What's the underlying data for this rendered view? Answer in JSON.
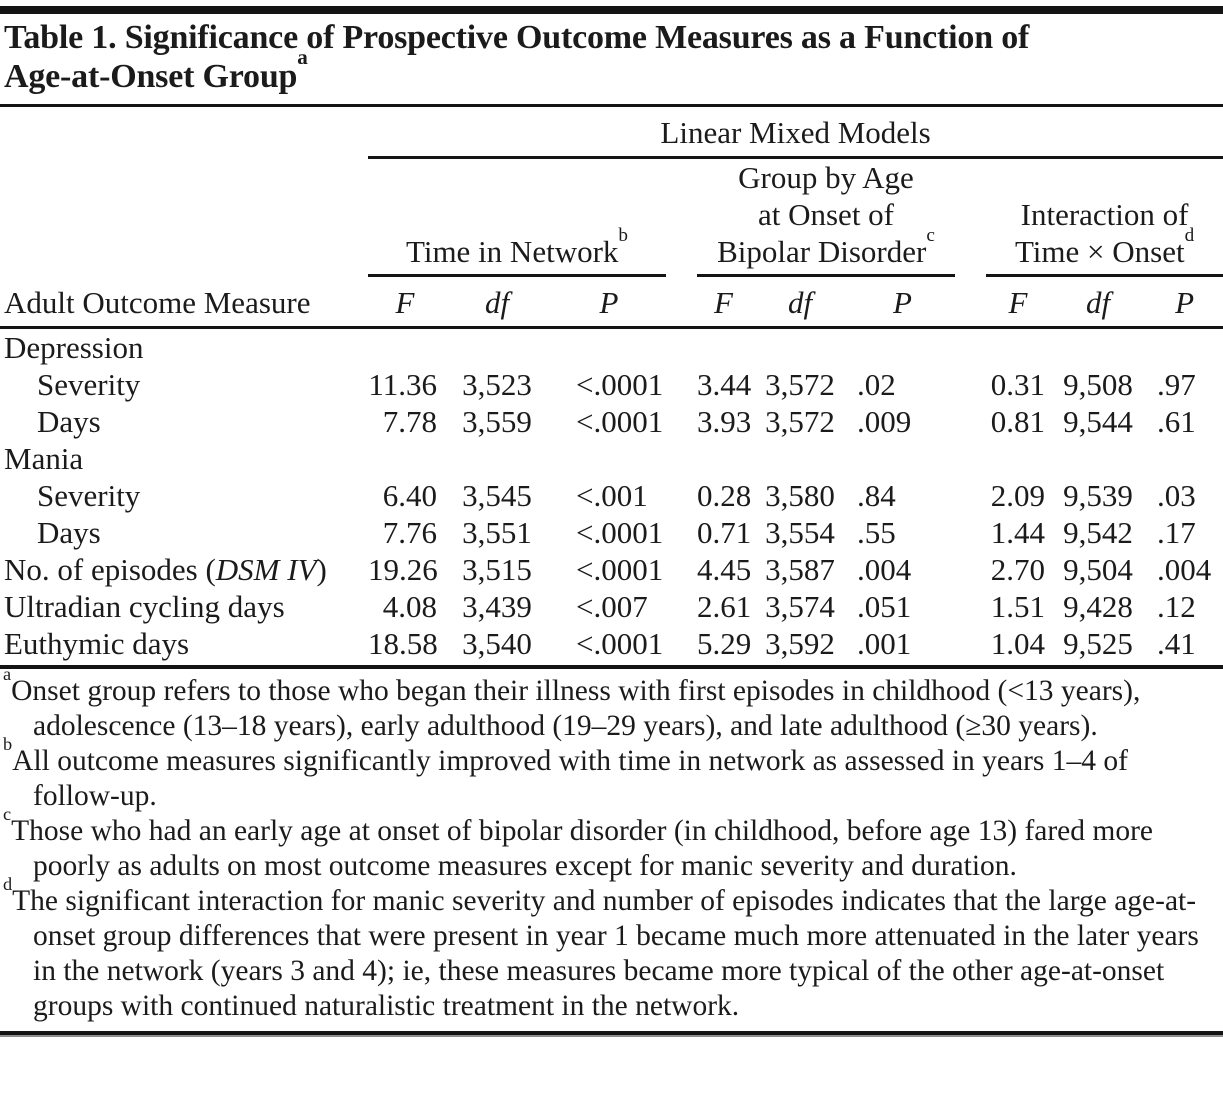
{
  "title": {
    "text": "Table 1. Significance of Prospective Outcome Measures as a Function of\nAge-at-Onset Group",
    "sup": "a"
  },
  "table": {
    "spanner": "Linear Mixed Models",
    "stub_header": "Adult Outcome Measure",
    "groups": [
      {
        "label": "Time in Network",
        "sup": "b"
      },
      {
        "label": "Group by Age\nat Onset of\nBipolar Disorder",
        "sup": "c"
      },
      {
        "label": "Interaction of\nTime × Onset",
        "sup": "d"
      }
    ],
    "col_headers": [
      "F",
      "df",
      "P"
    ],
    "rows": [
      {
        "label": "Depression",
        "indent": false,
        "section": true,
        "cells": []
      },
      {
        "label": "Severity",
        "indent": true,
        "section": false,
        "cells": [
          "11.36",
          "3,523",
          "<.0001",
          "3.44",
          "3,572",
          ".02",
          "0.31",
          "9,508",
          ".97"
        ]
      },
      {
        "label": "Days",
        "indent": true,
        "section": false,
        "cells": [
          "7.78",
          "3,559",
          "<.0001",
          "3.93",
          "3,572",
          ".009",
          "0.81",
          "9,544",
          ".61"
        ]
      },
      {
        "label": "Mania",
        "indent": false,
        "section": true,
        "cells": []
      },
      {
        "label": "Severity",
        "indent": true,
        "section": false,
        "cells": [
          "6.40",
          "3,545",
          "<.001",
          "0.28",
          "3,580",
          ".84",
          "2.09",
          "9,539",
          ".03"
        ]
      },
      {
        "label": "Days",
        "indent": true,
        "section": false,
        "cells": [
          "7.76",
          "3,551",
          "<.0001",
          "0.71",
          "3,554",
          ".55",
          "1.44",
          "9,542",
          ".17"
        ]
      },
      {
        "label": "No. of episodes (DSM IV)",
        "indent": false,
        "section": false,
        "label_parts": [
          {
            "t": "No. of episodes (",
            "i": false
          },
          {
            "t": "DSM IV",
            "i": true
          },
          {
            "t": ")",
            "i": false
          }
        ],
        "cells": [
          "19.26",
          "3,515",
          "<.0001",
          "4.45",
          "3,587",
          ".004",
          "2.70",
          "9,504",
          ".004"
        ]
      },
      {
        "label": "Ultradian cycling days",
        "indent": false,
        "section": false,
        "cells": [
          "4.08",
          "3,439",
          "<.007",
          "2.61",
          "3,574",
          ".051",
          "1.51",
          "9,428",
          ".12"
        ]
      },
      {
        "label": "Euthymic days",
        "indent": false,
        "section": false,
        "cells": [
          "18.58",
          "3,540",
          "<.0001",
          "5.29",
          "3,592",
          ".001",
          "1.04",
          "9,525",
          ".41"
        ]
      }
    ]
  },
  "footnotes": [
    {
      "sup": "a",
      "text": "Onset group refers to those who began their illness with first episodes in childhood (<13 years), adolescence (13–18 years), early adulthood (19–29 years), and late adulthood (≥30 years)."
    },
    {
      "sup": "b",
      "text": "All outcome measures significantly improved with time in network as assessed in years 1–4 of follow-up."
    },
    {
      "sup": "c",
      "text": "Those who had an early age at onset of bipolar disorder (in childhood, before age 13) fared more poorly as adults on most outcome measures except for manic severity and duration."
    },
    {
      "sup": "d",
      "text": "The significant interaction for manic severity and number of episodes indicates that the large age-at-onset group differences that were present in year 1 became much more attenuated in the later years in the network (years 3 and 4); ie, these measures became more typical of the other age-at-onset groups with continued naturalistic treatment in the network."
    }
  ],
  "colors": {
    "text": "#1b1b1b",
    "rule": "#141414",
    "bottom_rule_gray": "#8e8e8e",
    "background": "#ffffff"
  }
}
